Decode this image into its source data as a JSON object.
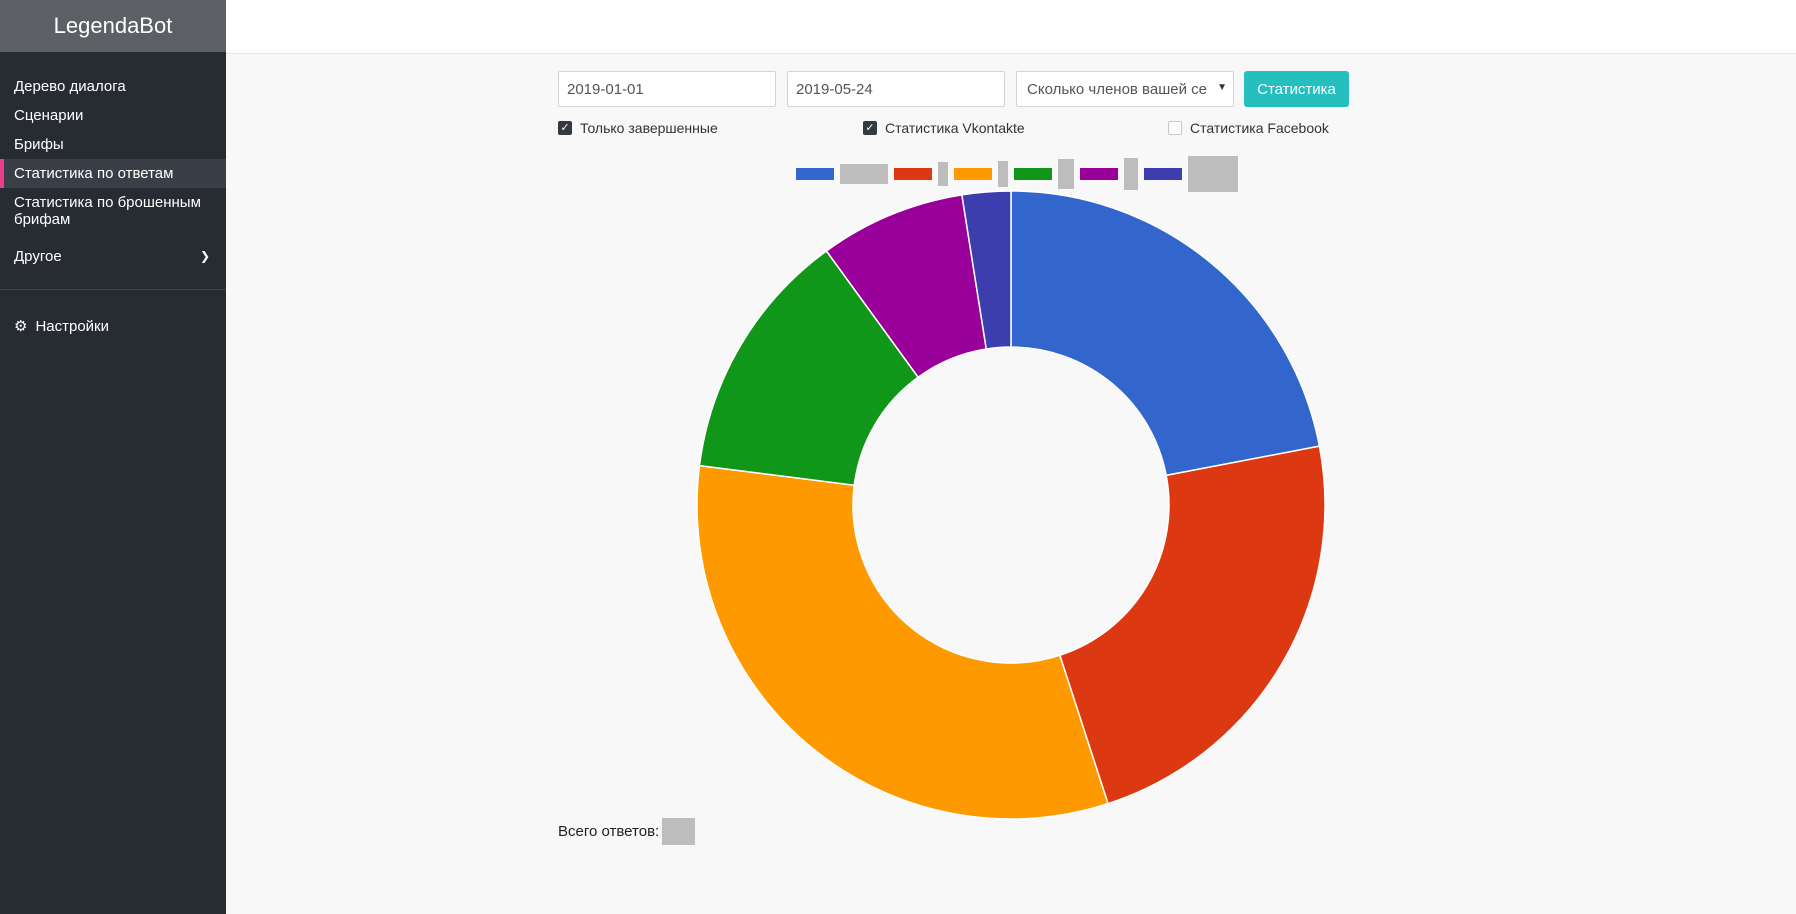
{
  "sidebar": {
    "brand": "LegendaBot",
    "items": [
      {
        "label": "Дерево диалога"
      },
      {
        "label": "Сценарии"
      },
      {
        "label": "Брифы"
      },
      {
        "label": "Статистика по ответам"
      },
      {
        "label": "Статистика по брошенным брифам"
      }
    ],
    "other": "Другое",
    "settings": "Настройки"
  },
  "filters": {
    "date_from": "2019-01-01",
    "date_to": "2019-05-24",
    "question_selected": "Сколько членов вашей се",
    "submit_label": "Статистика"
  },
  "checkboxes": {
    "completed_only": {
      "label": "Только завершенные",
      "checked": true
    },
    "vk": {
      "label": "Статистика Vkontakte",
      "checked": true
    },
    "fb": {
      "label": "Статистика Facebook",
      "checked": false
    }
  },
  "total": {
    "label": "Всего ответов:"
  },
  "colors": {
    "accent": "#26bfbf",
    "active_marker": "#e83e8c",
    "sidebar_bg": "#272c33"
  },
  "chart_data": {
    "type": "pie",
    "title": "",
    "legend_position": "top",
    "colors": [
      "#3366cc",
      "#dc3912",
      "#ff9900",
      "#109618",
      "#990099",
      "#3b3eac"
    ],
    "values": [
      22,
      23,
      32,
      13,
      7.5,
      2.5
    ]
  }
}
